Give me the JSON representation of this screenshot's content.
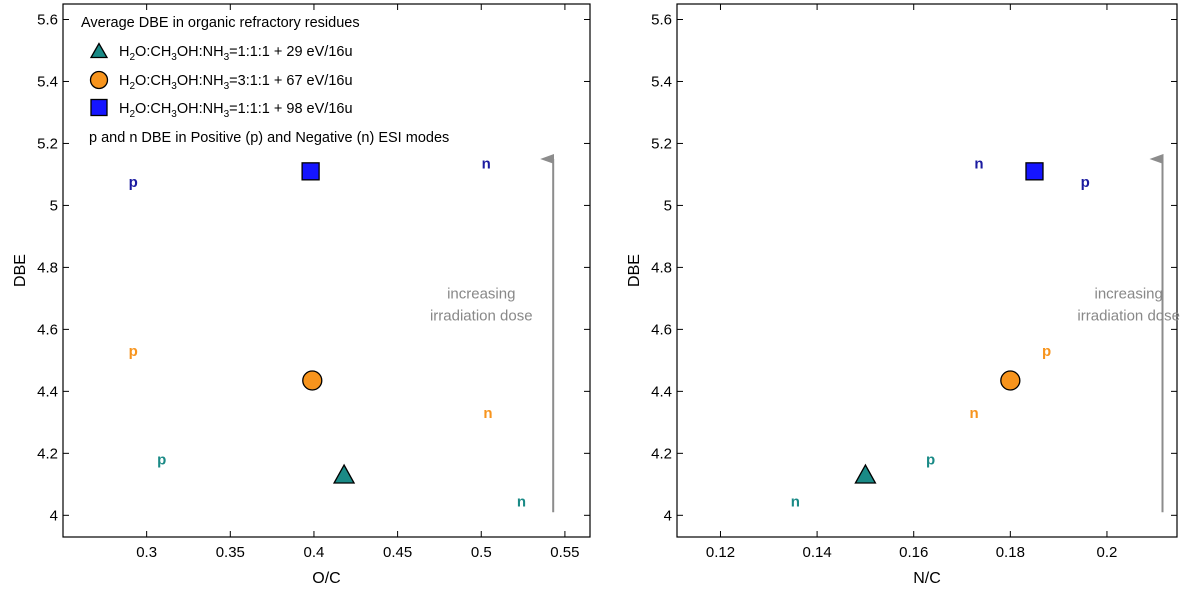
{
  "colors": {
    "teal": "#1a8a86",
    "orange": "#f7941d",
    "blue": "#1515ff",
    "navy": "#1a1aa0",
    "arrow": "#8c8c8c",
    "annotation": "#888888"
  },
  "legend": {
    "title": "Average DBE in organic refractory residues",
    "entries": [
      {
        "marker": "triangle",
        "color": "#1a8a86",
        "label_pre": "H",
        "sub1": "2",
        "mid1": "O:CH",
        "sub2": "3",
        "mid2": "OH:NH",
        "sub3": "3",
        "label_post": "=1:1:1 + 29 eV/16u"
      },
      {
        "marker": "circle",
        "color": "#f7941d",
        "label_pre": "H",
        "sub1": "2",
        "mid1": "O:CH",
        "sub2": "3",
        "mid2": "OH:NH",
        "sub3": "3",
        "label_post": "=3:1:1 + 67 eV/16u"
      },
      {
        "marker": "square",
        "color": "#1515ff",
        "label_pre": "H",
        "sub1": "2",
        "mid1": "O:CH",
        "sub2": "3",
        "mid2": "OH:NH",
        "sub3": "3",
        "label_post": "=1:1:1 + 98 eV/16u"
      }
    ],
    "note": "p and n DBE in Positive (p) and Negative (n) ESI modes"
  },
  "chart_data": [
    {
      "type": "scatter",
      "xlabel": "O/C",
      "ylabel": "DBE",
      "xlim": [
        0.25,
        0.565
      ],
      "ylim": [
        3.93,
        5.65
      ],
      "xticks": [
        0.3,
        0.35,
        0.4,
        0.45,
        0.5,
        0.55
      ],
      "xtick_labels": [
        "0.3",
        "0.35",
        "0.4",
        "0.45",
        "0.5",
        "0.55"
      ],
      "yticks": [
        4,
        4.2,
        4.4,
        4.6,
        4.8,
        5,
        5.2,
        5.4,
        5.6
      ],
      "ytick_labels": [
        "4",
        "4.2",
        "4.4",
        "4.6",
        "4.8",
        "5",
        "5.2",
        "5.4",
        "5.6"
      ],
      "markers": [
        {
          "shape": "triangle",
          "color": "#1a8a86",
          "x": 0.418,
          "y": 4.13
        },
        {
          "shape": "circle",
          "color": "#f7941d",
          "x": 0.399,
          "y": 4.435
        },
        {
          "shape": "square",
          "color": "#1515ff",
          "x": 0.398,
          "y": 5.11
        }
      ],
      "labels": [
        {
          "text": "p",
          "color": "#1a1aa0",
          "x": 0.292,
          "y": 5.075
        },
        {
          "text": "n",
          "color": "#1a1aa0",
          "x": 0.503,
          "y": 5.135
        },
        {
          "text": "p",
          "color": "#f7941d",
          "x": 0.292,
          "y": 4.53
        },
        {
          "text": "n",
          "color": "#f7941d",
          "x": 0.504,
          "y": 4.33
        },
        {
          "text": "p",
          "color": "#1a8a86",
          "x": 0.309,
          "y": 4.18
        },
        {
          "text": "n",
          "color": "#1a8a86",
          "x": 0.524,
          "y": 4.045
        }
      ],
      "arrow": {
        "x": 0.543,
        "y_start": 4.01,
        "y_end": 5.15
      },
      "annotation": {
        "lines": [
          "increasing",
          "irradiation dose"
        ],
        "x": 0.5,
        "y": 4.7
      }
    },
    {
      "type": "scatter",
      "xlabel": "N/C",
      "ylabel": "DBE",
      "xlim": [
        0.111,
        0.2145
      ],
      "ylim": [
        3.93,
        5.65
      ],
      "xticks": [
        0.12,
        0.14,
        0.16,
        0.18,
        0.2
      ],
      "xtick_labels": [
        "0.12",
        "0.14",
        "0.16",
        "0.18",
        "0.2"
      ],
      "yticks": [
        4,
        4.2,
        4.4,
        4.6,
        4.8,
        5,
        5.2,
        5.4,
        5.6
      ],
      "ytick_labels": [
        "4",
        "4.2",
        "4.4",
        "4.6",
        "4.8",
        "5",
        "5.2",
        "5.4",
        "5.6"
      ],
      "markers": [
        {
          "shape": "triangle",
          "color": "#1a8a86",
          "x": 0.15,
          "y": 4.13
        },
        {
          "shape": "circle",
          "color": "#f7941d",
          "x": 0.18,
          "y": 4.435
        },
        {
          "shape": "square",
          "color": "#1515ff",
          "x": 0.185,
          "y": 5.11
        }
      ],
      "labels": [
        {
          "text": "n",
          "color": "#1a1aa0",
          "x": 0.1735,
          "y": 5.135
        },
        {
          "text": "p",
          "color": "#1a1aa0",
          "x": 0.1955,
          "y": 5.075
        },
        {
          "text": "p",
          "color": "#f7941d",
          "x": 0.1875,
          "y": 4.53
        },
        {
          "text": "n",
          "color": "#f7941d",
          "x": 0.1725,
          "y": 4.33
        },
        {
          "text": "p",
          "color": "#1a8a86",
          "x": 0.1635,
          "y": 4.18
        },
        {
          "text": "n",
          "color": "#1a8a86",
          "x": 0.1355,
          "y": 4.045
        }
      ],
      "arrow": {
        "x": 0.2115,
        "y_start": 4.01,
        "y_end": 5.15
      },
      "annotation": {
        "lines": [
          "increasing",
          "irradiation dose"
        ],
        "x": 0.2045,
        "y": 4.7
      }
    }
  ]
}
